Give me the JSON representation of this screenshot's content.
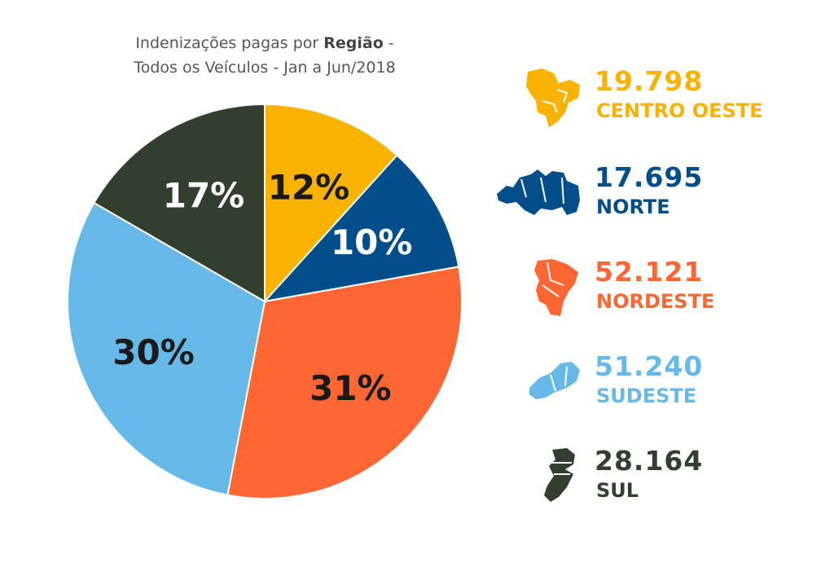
{
  "chart_data": {
    "type": "pie",
    "title_part1": "Indenizações pagas por ",
    "title_bold": "Região",
    "title_part2": " -",
    "title_line2": "Todos os Veículos - Jan a Jun/2018",
    "slices": [
      {
        "name": "CENTRO OESTE",
        "value": 19798,
        "percent_label": "12%",
        "color": "#F9B200",
        "label_color": "#1a1a1a",
        "map_icon": "centro-oeste-map-icon"
      },
      {
        "name": "NORTE",
        "value": 17695,
        "percent_label": "10%",
        "color": "#014E8B",
        "label_color": "#ffffff",
        "map_icon": "norte-map-icon"
      },
      {
        "name": "NORDESTE",
        "value": 52121,
        "percent_label": "31%",
        "color": "#FE6634",
        "label_color": "#1a1a1a",
        "map_icon": "nordeste-map-icon"
      },
      {
        "name": "SUDESTE",
        "value": 51240,
        "percent_label": "30%",
        "color": "#66B9E7",
        "label_color": "#1a1a1a",
        "map_icon": "sudeste-map-icon"
      },
      {
        "name": "SUL",
        "value": 28164,
        "percent_label": "17%",
        "color": "#333F2E",
        "label_color": "#ffffff",
        "map_icon": "sul-map-icon"
      }
    ],
    "legend": [
      {
        "value_label": "19.798",
        "name": "CENTRO OESTE",
        "color": "#F9B200"
      },
      {
        "value_label": "17.695",
        "name": "NORTE",
        "color": "#014E8B"
      },
      {
        "value_label": "52.121",
        "name": "NORDESTE",
        "color": "#FE6634"
      },
      {
        "value_label": "51.240",
        "name": "SUDESTE",
        "color": "#66B9E7"
      },
      {
        "value_label": "28.164",
        "name": "SUL",
        "color": "#333F2E"
      }
    ],
    "legend_placement": "right"
  }
}
